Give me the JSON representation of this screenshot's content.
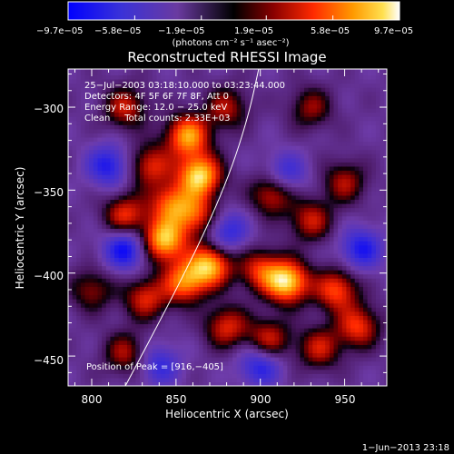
{
  "chart_data": {
    "type": "heatmap",
    "title": "Reconstructed RHESSI Image",
    "xlabel": "Heliocentric X (arcsec)",
    "ylabel": "Heliocentric Y (arcsec)",
    "xlim": [
      786,
      975
    ],
    "ylim": [
      -468,
      -277
    ],
    "x_ticks": [
      800,
      850,
      900,
      950
    ],
    "y_ticks": [
      -300,
      -350,
      -400,
      -450
    ],
    "x_tick_labels": [
      "800",
      "850",
      "900",
      "950"
    ],
    "y_tick_labels": [
      "−300",
      "−350",
      "−400",
      "−450"
    ],
    "colorbar": {
      "range": [
        -9.7e-05,
        9.7e-05
      ],
      "tick_values": [
        -9.7e-05,
        -5.8e-05,
        -1.9e-05,
        1.9e-05,
        5.8e-05,
        9.7e-05
      ],
      "tick_labels": [
        "−9.7e−05",
        "−5.8e−05",
        "−1.9e−05",
        "1.9e−05",
        "5.8e−05",
        "9.7e−05"
      ],
      "units_label": "(photons cm⁻² s⁻¹ asec⁻²)"
    },
    "annotations": [
      "25−Jul−2003 03:18:10.000 to 03:23:44.000",
      "Detectors: 4F 5F 6F 7F 8F, Att 0",
      "Energy Range: 12.0 − 25.0 keV",
      "Clean     Total counts: 2.33E+03"
    ],
    "peak_label": "Position of Peak = [916,−405]",
    "peak": [
      916,
      -405
    ],
    "date_stamp": "1−Jun−2013 23:18",
    "sources": [
      {
        "x": 857,
        "y": -317,
        "amp": 0.85
      },
      {
        "x": 864,
        "y": -341,
        "amp": 1.0
      },
      {
        "x": 835,
        "y": -335,
        "amp": 0.55
      },
      {
        "x": 820,
        "y": -300,
        "amp": 0.5
      },
      {
        "x": 880,
        "y": -300,
        "amp": 0.45
      },
      {
        "x": 847,
        "y": -358,
        "amp": 0.65
      },
      {
        "x": 862,
        "y": -365,
        "amp": 0.6
      },
      {
        "x": 820,
        "y": -365,
        "amp": 0.6
      },
      {
        "x": 843,
        "y": -380,
        "amp": 0.95
      },
      {
        "x": 870,
        "y": -395,
        "amp": 0.9
      },
      {
        "x": 855,
        "y": -405,
        "amp": 0.75
      },
      {
        "x": 832,
        "y": -415,
        "amp": 0.55
      },
      {
        "x": 900,
        "y": -398,
        "amp": 0.55
      },
      {
        "x": 916,
        "y": -405,
        "amp": 1.0
      },
      {
        "x": 907,
        "y": -352,
        "amp": 0.55
      },
      {
        "x": 930,
        "y": -368,
        "amp": 0.5
      },
      {
        "x": 950,
        "y": -345,
        "amp": 0.45
      },
      {
        "x": 945,
        "y": -410,
        "amp": 0.65
      },
      {
        "x": 958,
        "y": -432,
        "amp": 0.6
      },
      {
        "x": 880,
        "y": -432,
        "amp": 0.55
      },
      {
        "x": 905,
        "y": -440,
        "amp": 0.55
      },
      {
        "x": 935,
        "y": -445,
        "amp": 0.5
      },
      {
        "x": 820,
        "y": -448,
        "amp": 0.45
      },
      {
        "x": 800,
        "y": -410,
        "amp": 0.4
      },
      {
        "x": 930,
        "y": -300,
        "amp": 0.4
      },
      {
        "x": 810,
        "y": -335,
        "amp": -0.5
      },
      {
        "x": 820,
        "y": -385,
        "amp": -0.6
      },
      {
        "x": 880,
        "y": -375,
        "amp": -0.45
      },
      {
        "x": 915,
        "y": -340,
        "amp": -0.4
      },
      {
        "x": 960,
        "y": -385,
        "amp": -0.5
      },
      {
        "x": 900,
        "y": -455,
        "amp": -0.5
      },
      {
        "x": 840,
        "y": -455,
        "amp": -0.4
      }
    ],
    "limb": [
      [
        820,
        -468
      ],
      [
        845,
        -420
      ],
      [
        865,
        -380
      ],
      [
        882,
        -340
      ],
      [
        893,
        -305
      ],
      [
        899,
        -277
      ]
    ]
  }
}
